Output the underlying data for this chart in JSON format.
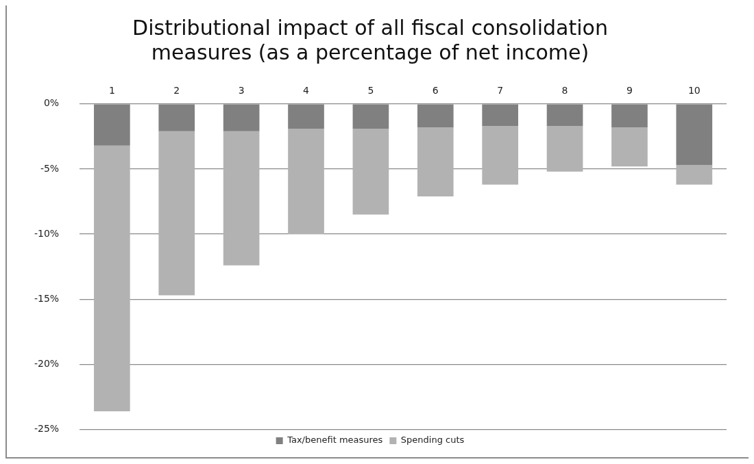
{
  "chart_data": {
    "type": "bar",
    "title": "Distributional impact of all fiscal consolidation measures (as a percentage of net income)",
    "categories": [
      "1",
      "2",
      "3",
      "4",
      "5",
      "6",
      "7",
      "8",
      "9",
      "10"
    ],
    "series": [
      {
        "name": "Tax/benefit measures",
        "color": "#808080",
        "values": [
          -3.2,
          -2.1,
          -2.1,
          -1.9,
          -1.9,
          -1.8,
          -1.7,
          -1.7,
          -1.8,
          -4.7
        ]
      },
      {
        "name": "Spending cuts",
        "color": "#b2b2b2",
        "values": [
          -20.4,
          -12.6,
          -10.3,
          -8.1,
          -6.6,
          -5.3,
          -4.5,
          -3.5,
          -3.0,
          -1.5
        ]
      }
    ],
    "stacked": true,
    "ylim": [
      -25,
      0
    ],
    "yticks": [
      {
        "value": 0,
        "label": "0%"
      },
      {
        "value": -5,
        "label": "-5%"
      },
      {
        "value": -10,
        "label": "-10%"
      },
      {
        "value": -15,
        "label": "-15%"
      },
      {
        "value": -20,
        "label": "-20%"
      },
      {
        "value": -25,
        "label": "-25%"
      }
    ],
    "grid": "y",
    "legend": "bottom"
  }
}
